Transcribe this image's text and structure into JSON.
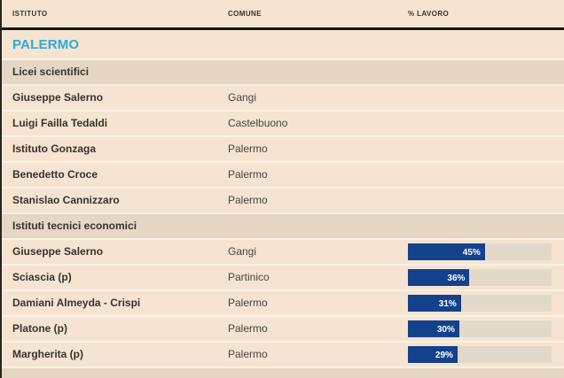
{
  "colors": {
    "gap_background": "#faf1e4",
    "row_background": "#f4e4d1",
    "section_background": "#e6d7c4",
    "bar_track": "#e2d9cb",
    "bar_fill": "#14418c",
    "group_title": "#2baadd",
    "text_dark": "#38332d",
    "text_muted": "#4a443e",
    "separator_line": "#1a1512",
    "left_border": "#2a241e"
  },
  "table": {
    "columns": [
      "ISTITUTO",
      "COMUNE",
      "% LAVORO"
    ],
    "group": "PALERMO",
    "bar_scale_max": 84,
    "sections": [
      {
        "label": "Licei scientifici",
        "rows": [
          {
            "istituto": "Giuseppe Salerno",
            "comune": "Gangi",
            "lavoro": null
          },
          {
            "istituto": "Luigi Failla Tedaldi",
            "comune": "Castelbuono",
            "lavoro": null
          },
          {
            "istituto": "Istituto Gonzaga",
            "comune": "Palermo",
            "lavoro": null
          },
          {
            "istituto": "Benedetto Croce",
            "comune": "Palermo",
            "lavoro": null
          },
          {
            "istituto": "Stanislao Cannizzaro",
            "comune": "Palermo",
            "lavoro": null
          }
        ]
      },
      {
        "label": "Istituti tecnici economici",
        "rows": [
          {
            "istituto": "Giuseppe Salerno",
            "comune": "Gangi",
            "lavoro": 45
          },
          {
            "istituto": "Sciascia (p)",
            "comune": "Partinico",
            "lavoro": 36
          },
          {
            "istituto": "Damiani Almeyda - Crispi",
            "comune": "Palermo",
            "lavoro": 31
          },
          {
            "istituto": "Platone (p)",
            "comune": "Palermo",
            "lavoro": 30
          },
          {
            "istituto": "Margherita (p)",
            "comune": "Palermo",
            "lavoro": 29
          }
        ]
      }
    ]
  },
  "chart_data": {
    "type": "table",
    "title": "PALERMO",
    "columns": [
      "ISTITUTO",
      "COMUNE",
      "% LAVORO"
    ],
    "bar_column": "% LAVORO",
    "bar_axis_range": [
      0,
      84
    ],
    "rows": [
      {
        "section": "Licei scientifici",
        "istituto": "Giuseppe Salerno",
        "comune": "Gangi",
        "lavoro_pct": null
      },
      {
        "section": "Licei scientifici",
        "istituto": "Luigi Failla Tedaldi",
        "comune": "Castelbuono",
        "lavoro_pct": null
      },
      {
        "section": "Licei scientifici",
        "istituto": "Istituto Gonzaga",
        "comune": "Palermo",
        "lavoro_pct": null
      },
      {
        "section": "Licei scientifici",
        "istituto": "Benedetto Croce",
        "comune": "Palermo",
        "lavoro_pct": null
      },
      {
        "section": "Licei scientifici",
        "istituto": "Stanislao Cannizzaro",
        "comune": "Palermo",
        "lavoro_pct": null
      },
      {
        "section": "Istituti tecnici economici",
        "istituto": "Giuseppe Salerno",
        "comune": "Gangi",
        "lavoro_pct": 45
      },
      {
        "section": "Istituti tecnici economici",
        "istituto": "Sciascia (p)",
        "comune": "Partinico",
        "lavoro_pct": 36
      },
      {
        "section": "Istituti tecnici economici",
        "istituto": "Damiani Almeyda - Crispi",
        "comune": "Palermo",
        "lavoro_pct": 31
      },
      {
        "section": "Istituti tecnici economici",
        "istituto": "Platone (p)",
        "comune": "Palermo",
        "lavoro_pct": 30
      },
      {
        "section": "Istituti tecnici economici",
        "istituto": "Margherita (p)",
        "comune": "Palermo",
        "lavoro_pct": 29
      }
    ]
  }
}
